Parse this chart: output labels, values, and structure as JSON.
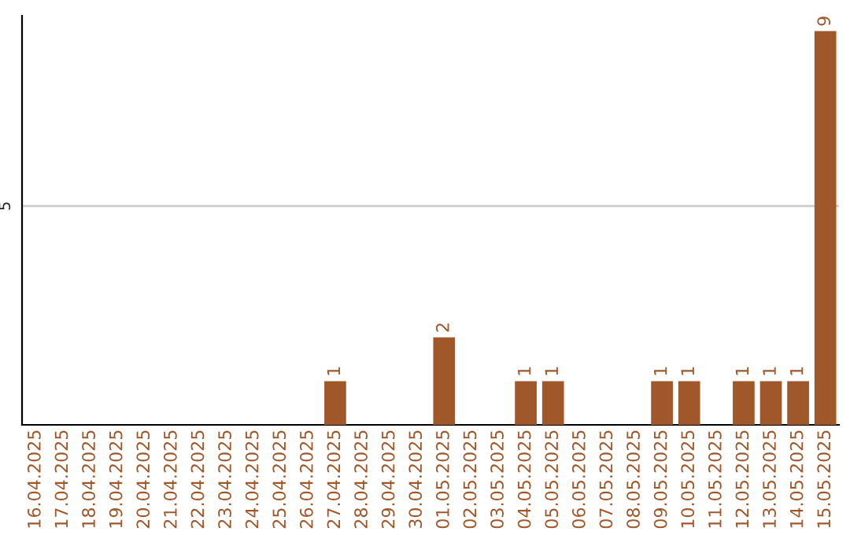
{
  "chart_data": {
    "type": "bar",
    "categories": [
      "16.04.2025",
      "17.04.2025",
      "18.04.2025",
      "19.04.2025",
      "20.04.2025",
      "21.04.2025",
      "22.04.2025",
      "23.04.2025",
      "24.04.2025",
      "25.04.2025",
      "26.04.2025",
      "27.04.2025",
      "28.04.2025",
      "29.04.2025",
      "30.04.2025",
      "01.05.2025",
      "02.05.2025",
      "03.05.2025",
      "04.05.2025",
      "05.05.2025",
      "06.05.2025",
      "07.05.2025",
      "08.05.2025",
      "09.05.2025",
      "10.05.2025",
      "11.05.2025",
      "12.05.2025",
      "13.05.2025",
      "14.05.2025",
      "15.05.2025"
    ],
    "values": [
      0,
      0,
      0,
      0,
      0,
      0,
      0,
      0,
      0,
      0,
      0,
      1,
      0,
      0,
      0,
      2,
      0,
      0,
      1,
      1,
      0,
      0,
      0,
      1,
      1,
      0,
      1,
      1,
      1,
      9
    ],
    "value_labels": [
      null,
      null,
      null,
      null,
      null,
      null,
      null,
      null,
      null,
      null,
      null,
      "1",
      null,
      null,
      null,
      "2",
      null,
      null,
      "1",
      "1",
      null,
      null,
      null,
      "1",
      "1",
      null,
      "1",
      "1",
      "1",
      "9"
    ],
    "color": "#a0572a",
    "ylim": [
      0,
      9.35
    ],
    "yticks": [
      5
    ],
    "grid": "y"
  }
}
